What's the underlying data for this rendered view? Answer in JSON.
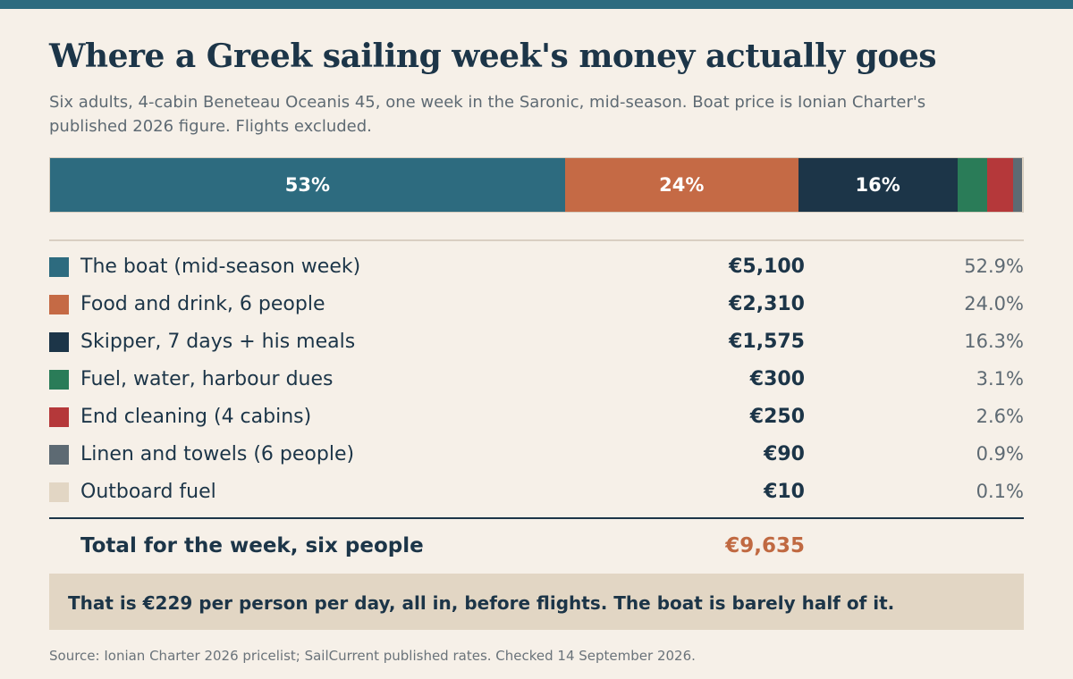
{
  "colors": {
    "topbar": "#2d6b7f",
    "background": "#f6f0e8",
    "text_dark": "#1c3548",
    "total_accent": "#c06941",
    "callout_bg": "#e2d6c4"
  },
  "header": {
    "title": "Where a Greek sailing week's money actually goes",
    "subtitle": "Six adults, 4-cabin Beneteau Oceanis 45, one week in the Saronic, mid-season. Boat price is Ionian Charter's published 2026 figure. Flights excluded."
  },
  "chart_data": {
    "type": "bar",
    "orientation": "horizontal-stacked-100",
    "title": "Where a Greek sailing week's money actually goes",
    "currency": "EUR",
    "categories": [
      "The boat (mid-season week)",
      "Food and drink, 6 people",
      "Skipper, 7 days + his meals",
      "Fuel, water, harbour dues",
      "End cleaning (4 cabins)",
      "Linen and towels (6 people)",
      "Outboard fuel"
    ],
    "values": [
      5100,
      2310,
      1575,
      300,
      250,
      90,
      10
    ],
    "amount_labels": [
      "€5,100",
      "€2,310",
      "€1,575",
      "€300",
      "€250",
      "€90",
      "€10"
    ],
    "percent_values": [
      52.9,
      24.0,
      16.3,
      3.1,
      2.6,
      0.9,
      0.1
    ],
    "percent_labels": [
      "52.9%",
      "24.0%",
      "16.3%",
      "3.1%",
      "2.6%",
      "0.9%",
      "0.1%"
    ],
    "bar_labels": [
      "53%",
      "24%",
      "16%",
      "",
      "",
      "",
      ""
    ],
    "colors": [
      "#2d6b7f",
      "#c56a45",
      "#1c3548",
      "#2a7c58",
      "#b5383a",
      "#5d6a73",
      "#e2d6c4"
    ],
    "total": 9635
  },
  "total": {
    "label": "Total for the week, six people",
    "amount": "€9,635"
  },
  "callout": {
    "text": "That is €229 per person per day, all in, before flights. The boat is barely half of it."
  },
  "source": "Source: Ionian Charter 2026 pricelist; SailCurrent published rates. Checked 14 September 2026."
}
